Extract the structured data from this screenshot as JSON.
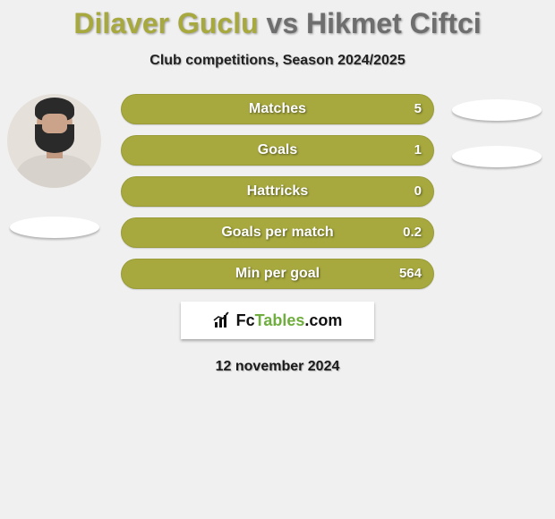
{
  "title": {
    "player1": "Dilaver Guclu",
    "vs": "vs",
    "player2": "Hikmet Ciftci",
    "player1_color": "#a7a93e",
    "vs_color": "#6e6e6e",
    "player2_color": "#6e6e6e"
  },
  "subtitle": "Club competitions, Season 2024/2025",
  "player1": {
    "has_photo": true,
    "shadow_color": "#ffffff"
  },
  "player2": {
    "has_photo": false,
    "shadow_color": "#ffffff"
  },
  "bar_style": {
    "fill_color": "#a7a93e",
    "height": 34,
    "radius": 17,
    "label_color": "#ffffff",
    "label_fontsize": 16
  },
  "stats": [
    {
      "label": "Matches",
      "value": "5"
    },
    {
      "label": "Goals",
      "value": "1"
    },
    {
      "label": "Hattricks",
      "value": "0"
    },
    {
      "label": "Goals per match",
      "value": "0.2"
    },
    {
      "label": "Min per goal",
      "value": "564"
    }
  ],
  "logo": {
    "text_prefix": "Fc",
    "text_main": "Tables",
    "text_suffix": ".com",
    "icon_color": "#111111",
    "accent_color": "#6fae3e",
    "box_bg": "#ffffff"
  },
  "date": "12 november 2024",
  "background_color": "#f0f0f0"
}
